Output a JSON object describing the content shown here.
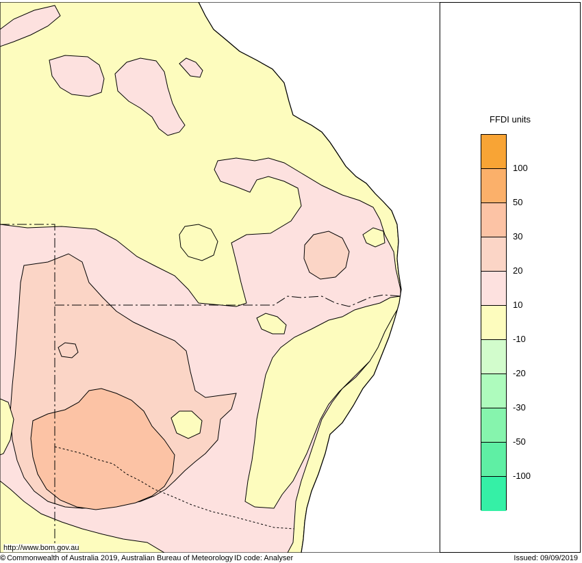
{
  "legend": {
    "title": "FFDI units",
    "bands": [
      {
        "color": "#f8a435"
      },
      {
        "color": "#fbb06a"
      },
      {
        "color": "#fcc3a5"
      },
      {
        "color": "#fbd5c6"
      },
      {
        "color": "#fde1df"
      },
      {
        "color": "#fdfcbe"
      },
      {
        "color": "#d2fccc"
      },
      {
        "color": "#aefbbd"
      },
      {
        "color": "#86f4ad"
      },
      {
        "color": "#5fefa4"
      },
      {
        "color": "#35f0a6"
      }
    ],
    "labels": [
      "100",
      "50",
      "30",
      "20",
      "10",
      "-10",
      "-20",
      "-30",
      "-50",
      "-100"
    ]
  },
  "map": {
    "url": "http://www.bom.gov.au",
    "ocean_color": "#ffffff",
    "coast_color": "#000000"
  },
  "footer": {
    "copyright_icon": "©",
    "copyright_text": "Commonwealth of Australia 2019, Australian Bureau of Meteorology",
    "id_code": "ID code: Analyser",
    "issued": "Issued: 09/09/2019"
  }
}
